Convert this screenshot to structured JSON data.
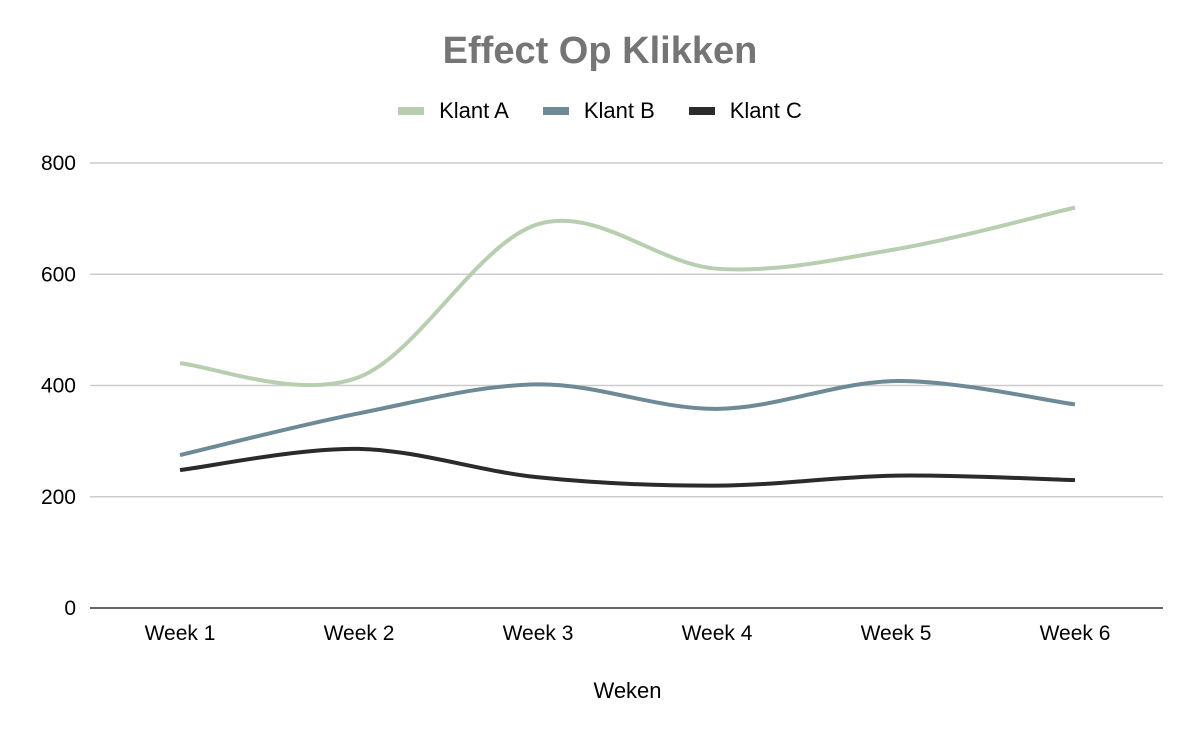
{
  "chart_data": {
    "type": "line",
    "title": "Effect Op Klikken",
    "xlabel": "Weken",
    "ylabel": "",
    "categories": [
      "Week 1",
      "Week 2",
      "Week 3",
      "Week 4",
      "Week 5",
      "Week 6"
    ],
    "ylim": [
      0,
      800
    ],
    "yticks": [
      0,
      200,
      400,
      600,
      800
    ],
    "grid": true,
    "legend_position": "top",
    "smooth": true,
    "series": [
      {
        "name": "Klant A",
        "color": "#b7cfb0",
        "values": [
          440,
          415,
          690,
          610,
          645,
          720
        ]
      },
      {
        "name": "Klant B",
        "color": "#6e8a96",
        "values": [
          275,
          350,
          402,
          358,
          408,
          366
        ]
      },
      {
        "name": "Klant C",
        "color": "#2b2b2b",
        "values": [
          248,
          286,
          235,
          220,
          238,
          230
        ]
      }
    ]
  }
}
